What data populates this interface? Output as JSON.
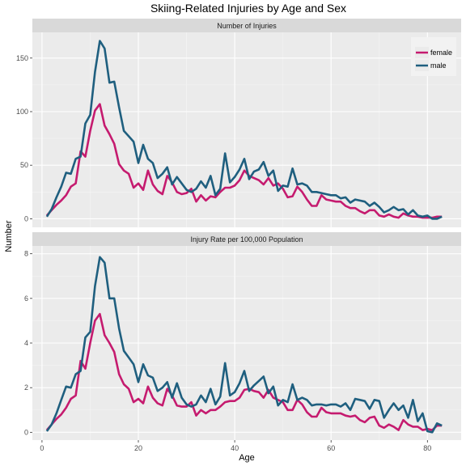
{
  "chart_data": [
    {
      "type": "line",
      "panel_title": "Number of Injuries",
      "x": [
        1,
        2,
        3,
        4,
        5,
        6,
        7,
        8,
        9,
        10,
        11,
        12,
        13,
        14,
        15,
        16,
        17,
        18,
        19,
        20,
        21,
        22,
        23,
        24,
        25,
        26,
        27,
        28,
        29,
        30,
        31,
        32,
        33,
        34,
        35,
        36,
        37,
        38,
        39,
        40,
        41,
        42,
        43,
        44,
        45,
        46,
        47,
        48,
        49,
        50,
        51,
        52,
        53,
        54,
        55,
        56,
        57,
        58,
        59,
        60,
        61,
        62,
        63,
        64,
        65,
        66,
        67,
        68,
        69,
        70,
        71,
        72,
        73,
        74,
        75,
        76,
        77,
        78,
        79,
        80,
        81,
        82,
        83
      ],
      "series": [
        {
          "name": "female",
          "color": "#c51b6f",
          "values": [
            3,
            8,
            13,
            17,
            22,
            30,
            33,
            63,
            58,
            82,
            101,
            107,
            87,
            79,
            70,
            51,
            45,
            42,
            29,
            33,
            27,
            45,
            32,
            26,
            23,
            40,
            34,
            25,
            23,
            24,
            28,
            16,
            22,
            17,
            21,
            20,
            25,
            29,
            29,
            31,
            36,
            45,
            40,
            38,
            36,
            32,
            38,
            31,
            33,
            28,
            20,
            21,
            30,
            25,
            18,
            12,
            12,
            22,
            18,
            17,
            16,
            16,
            12,
            10,
            10,
            7,
            5,
            8,
            8,
            3,
            2,
            4,
            2,
            1,
            5,
            3,
            2,
            2,
            1,
            1,
            1,
            2,
            2
          ]
        },
        {
          "name": "male",
          "color": "#1f5f7f",
          "values": [
            2,
            9,
            20,
            30,
            43,
            42,
            56,
            58,
            89,
            97,
            137,
            166,
            159,
            127,
            128,
            104,
            82,
            77,
            72,
            52,
            69,
            56,
            52,
            38,
            42,
            48,
            32,
            39,
            33,
            27,
            25,
            28,
            35,
            29,
            40,
            22,
            28,
            61,
            34,
            39,
            46,
            56,
            37,
            44,
            46,
            53,
            40,
            45,
            26,
            31,
            30,
            47,
            32,
            33,
            31,
            25,
            25,
            24,
            23,
            22,
            22,
            19,
            20,
            15,
            18,
            17,
            16,
            12,
            15,
            11,
            6,
            8,
            11,
            8,
            9,
            4,
            8,
            3,
            2,
            3,
            0,
            0,
            2
          ]
        }
      ],
      "xlim": [
        -2,
        87
      ],
      "ylim": [
        -8,
        174
      ],
      "y_ticks": [
        0,
        50,
        100,
        150
      ],
      "x_ticks": [
        0,
        20,
        40,
        60,
        80
      ]
    },
    {
      "type": "line",
      "panel_title": "Injury Rate per 100,000 Population",
      "x": [
        1,
        2,
        3,
        4,
        5,
        6,
        7,
        8,
        9,
        10,
        11,
        12,
        13,
        14,
        15,
        16,
        17,
        18,
        19,
        20,
        21,
        22,
        23,
        24,
        25,
        26,
        27,
        28,
        29,
        30,
        31,
        32,
        33,
        34,
        35,
        36,
        37,
        38,
        39,
        40,
        41,
        42,
        43,
        44,
        45,
        46,
        47,
        48,
        49,
        50,
        51,
        52,
        53,
        54,
        55,
        56,
        57,
        58,
        59,
        60,
        61,
        62,
        63,
        64,
        65,
        66,
        67,
        68,
        69,
        70,
        71,
        72,
        73,
        74,
        75,
        76,
        77,
        78,
        79,
        80,
        81,
        82,
        83
      ],
      "series": [
        {
          "name": "female",
          "color": "#c51b6f",
          "values": [
            0.1,
            0.35,
            0.6,
            0.8,
            1.1,
            1.5,
            1.65,
            3.2,
            2.85,
            4.0,
            5.0,
            5.3,
            4.35,
            4.0,
            3.6,
            2.6,
            2.15,
            1.95,
            1.35,
            1.5,
            1.3,
            2.05,
            1.55,
            1.3,
            1.2,
            1.95,
            1.65,
            1.2,
            1.15,
            1.15,
            1.35,
            0.75,
            1.0,
            0.85,
            1.0,
            1.0,
            1.15,
            1.35,
            1.4,
            1.4,
            1.55,
            1.9,
            1.95,
            1.85,
            1.8,
            1.55,
            1.9,
            1.55,
            1.45,
            1.35,
            1.0,
            1.0,
            1.45,
            1.25,
            0.9,
            0.7,
            0.7,
            1.1,
            0.9,
            0.85,
            0.85,
            0.85,
            0.75,
            0.7,
            0.75,
            0.55,
            0.45,
            0.65,
            0.7,
            0.3,
            0.2,
            0.35,
            0.25,
            0.1,
            0.55,
            0.35,
            0.25,
            0.25,
            0.1,
            0.15,
            0.1,
            0.3,
            0.3
          ]
        },
        {
          "name": "male",
          "color": "#1f5f7f",
          "values": [
            0.05,
            0.35,
            0.85,
            1.45,
            2.05,
            2.0,
            2.6,
            2.75,
            4.25,
            4.5,
            6.55,
            7.85,
            7.6,
            6.0,
            6.0,
            4.65,
            3.65,
            3.35,
            3.05,
            2.25,
            3.05,
            2.55,
            2.45,
            1.85,
            2.0,
            2.25,
            1.55,
            2.2,
            1.55,
            1.25,
            1.15,
            1.25,
            1.65,
            1.35,
            1.95,
            1.25,
            1.6,
            3.1,
            1.65,
            1.8,
            2.2,
            2.75,
            1.85,
            2.1,
            2.3,
            2.5,
            1.75,
            2.05,
            1.2,
            1.45,
            1.35,
            2.15,
            1.45,
            1.55,
            1.45,
            1.2,
            1.25,
            1.25,
            1.2,
            1.25,
            1.25,
            1.15,
            1.3,
            1.0,
            1.5,
            1.45,
            1.4,
            1.05,
            1.45,
            1.4,
            0.65,
            1.0,
            1.3,
            1.0,
            1.2,
            0.65,
            1.45,
            0.5,
            0.85,
            0.05,
            0.0,
            0.4,
            0.3
          ]
        }
      ],
      "xlim": [
        -2,
        87
      ],
      "ylim": [
        -0.35,
        8.35
      ],
      "y_ticks": [
        0,
        2,
        4,
        6,
        8
      ],
      "x_ticks": [
        0,
        20,
        40,
        60,
        80
      ]
    }
  ],
  "title": "Skiing-Related Injuries by Age and Sex",
  "xlabel": "Age",
  "ylabel": "Number",
  "legend": {
    "placement": "top-right",
    "entries": [
      "female",
      "male"
    ]
  },
  "grid": true
}
